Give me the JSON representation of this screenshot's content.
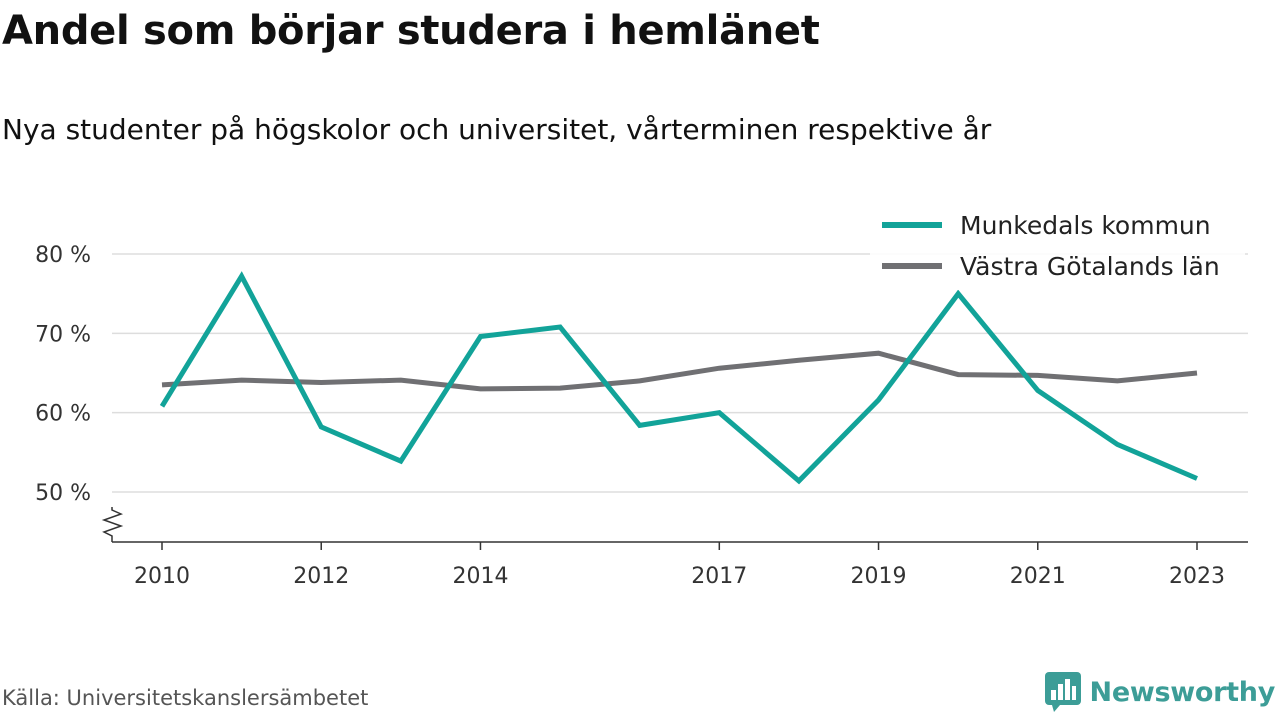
{
  "header": {
    "title": "Andel som börjar studera i hemlänet",
    "subtitle": "Nya studenter på högskolor och universitet, vårterminen respektive år"
  },
  "footer": {
    "source": "Källa: Universitetskanslersämbetet",
    "brand": "Newsworthy",
    "brand_icon": "bar-chart-speech-bubble-icon",
    "brand_color": "#3c9d97"
  },
  "chart_data": {
    "type": "line",
    "title": "Andel som börjar studera i hemlänet",
    "subtitle": "Nya studenter på högskolor och universitet, vårterminen respektive år",
    "xlabel": "",
    "ylabel": "",
    "x": [
      2010,
      2011,
      2012,
      2013,
      2014,
      2015,
      2016,
      2017,
      2018,
      2019,
      2020,
      2021,
      2022,
      2023
    ],
    "x_ticks": [
      2010,
      2012,
      2014,
      2017,
      2019,
      2021,
      2023
    ],
    "x_tick_labels": [
      "2010",
      "2012",
      "2014",
      "2017",
      "2019",
      "2021",
      "2023"
    ],
    "ylim": [
      44,
      80
    ],
    "y_ticks": [
      50,
      60,
      70,
      80
    ],
    "y_tick_labels": [
      "50 %",
      "60 %",
      "70 %",
      "80 %"
    ],
    "y_axis_break": true,
    "grid": "horizontal",
    "legend_position": "top-right",
    "series": [
      {
        "name": "Munkedals kommun",
        "color": "#12a399",
        "values": [
          60.8,
          77.2,
          58.2,
          53.9,
          69.6,
          70.8,
          58.4,
          60.0,
          51.4,
          61.6,
          75.0,
          62.8,
          56.0,
          51.7
        ]
      },
      {
        "name": "Västra Götalands län",
        "color": "#707073",
        "values": [
          63.5,
          64.1,
          63.8,
          64.1,
          63.0,
          63.1,
          64.0,
          65.6,
          66.6,
          67.5,
          64.8,
          64.7,
          64.0,
          65.0
        ]
      }
    ]
  }
}
